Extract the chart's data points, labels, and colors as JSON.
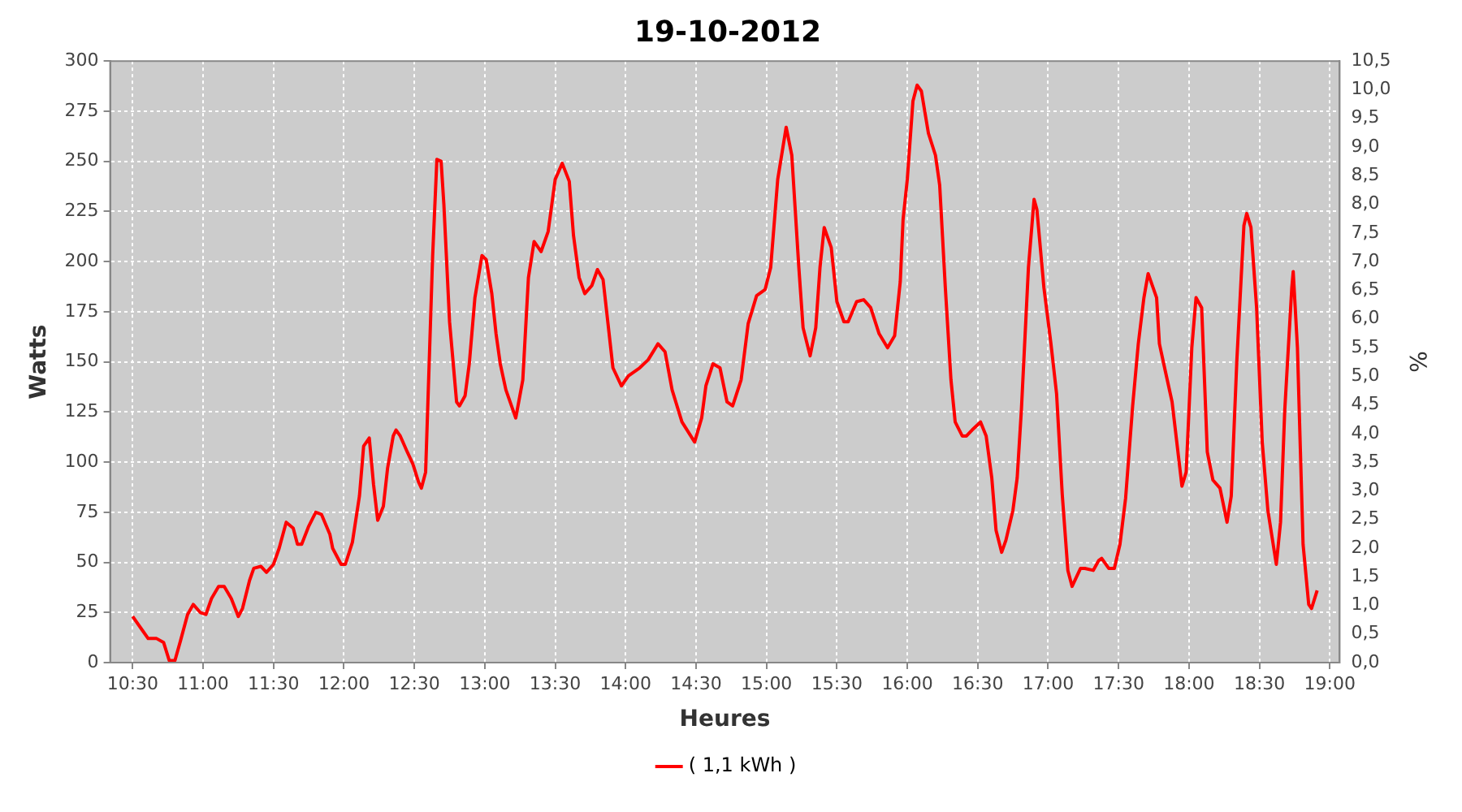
{
  "chart_data": {
    "type": "line",
    "title": "19-10-2012",
    "xlabel": "Heures",
    "ylabel": "Watts",
    "y2label": "%",
    "x": [
      10.5,
      10.57,
      10.61,
      10.67,
      10.72,
      10.76,
      10.8,
      10.84,
      10.89,
      10.93,
      10.98,
      11.02,
      11.06,
      11.11,
      11.15,
      11.2,
      11.25,
      11.28,
      11.33,
      11.36,
      11.41,
      11.45,
      11.5,
      11.54,
      11.59,
      11.64,
      11.67,
      11.7,
      11.75,
      11.8,
      11.84,
      11.9,
      11.92,
      11.98,
      12.01,
      12.06,
      12.11,
      12.14,
      12.18,
      12.21,
      12.24,
      12.28,
      12.31,
      12.35,
      12.37,
      12.4,
      12.45,
      12.49,
      12.53,
      12.55,
      12.58,
      12.6,
      12.63,
      12.66,
      12.69,
      12.71,
      12.75,
      12.8,
      12.82,
      12.86,
      12.89,
      12.93,
      12.98,
      13.01,
      13.05,
      13.08,
      13.11,
      13.15,
      13.2,
      13.22,
      13.27,
      13.31,
      13.35,
      13.4,
      13.45,
      13.5,
      13.55,
      13.6,
      13.63,
      13.67,
      13.71,
      13.76,
      13.8,
      13.84,
      13.91,
      13.97,
      14.02,
      14.1,
      14.16,
      14.23,
      14.28,
      14.33,
      14.4,
      14.49,
      14.54,
      14.57,
      14.62,
      14.67,
      14.72,
      14.76,
      14.82,
      14.87,
      14.93,
      14.99,
      15.03,
      15.08,
      15.14,
      15.18,
      15.23,
      15.26,
      15.31,
      15.35,
      15.38,
      15.41,
      15.46,
      15.5,
      15.55,
      15.58,
      15.64,
      15.69,
      15.74,
      15.8,
      15.86,
      15.91,
      15.95,
      15.97,
      16.0,
      16.04,
      16.07,
      16.1,
      16.15,
      16.2,
      16.23,
      16.27,
      16.31,
      16.34,
      16.39,
      16.42,
      16.46,
      16.52,
      16.56,
      16.6,
      16.63,
      16.67,
      16.7,
      16.75,
      16.78,
      16.81,
      16.86,
      16.9,
      16.92,
      16.97,
      17.02,
      17.06,
      17.1,
      17.14,
      17.17,
      17.23,
      17.26,
      17.32,
      17.36,
      17.38,
      17.43,
      17.47,
      17.51,
      17.55,
      17.6,
      17.64,
      17.68,
      17.71,
      17.77,
      17.79,
      17.83,
      17.88,
      17.93,
      17.95,
      17.98,
      18.02,
      18.05,
      18.09,
      18.11,
      18.13,
      18.17,
      18.22,
      18.27,
      18.3,
      18.34,
      18.39,
      18.41,
      18.44,
      18.48,
      18.52,
      18.56,
      18.62,
      18.65,
      18.68,
      18.73,
      18.74,
      18.77,
      18.81,
      18.85,
      18.87,
      18.91
    ],
    "series": [
      {
        "name": "( 1,1 kWh )",
        "color": "#ff0000",
        "values": [
          23,
          16,
          12,
          12,
          10,
          1,
          1,
          11,
          24,
          29,
          25,
          24,
          32,
          38,
          38,
          32,
          23,
          27,
          41,
          47,
          48,
          45,
          49,
          57,
          70,
          67,
          59,
          59,
          68,
          75,
          74,
          64,
          57,
          49,
          49,
          60,
          83,
          108,
          112,
          89,
          71,
          78,
          97,
          113,
          116,
          113,
          105,
          99,
          90,
          87,
          95,
          138,
          203,
          251,
          250,
          228,
          170,
          130,
          128,
          133,
          149,
          182,
          203,
          201,
          184,
          164,
          149,
          136,
          126,
          122,
          141,
          192,
          210,
          205,
          215,
          241,
          249,
          240,
          213,
          192,
          184,
          188,
          196,
          191,
          147,
          138,
          143,
          147,
          151,
          159,
          155,
          136,
          120,
          110,
          122,
          138,
          149,
          147,
          130,
          128,
          141,
          169,
          183,
          186,
          197,
          241,
          267,
          253,
          197,
          167,
          153,
          167,
          197,
          217,
          207,
          180,
          170,
          170,
          180,
          181,
          177,
          164,
          157,
          163,
          190,
          221,
          241,
          280,
          288,
          285,
          264,
          253,
          238,
          187,
          141,
          120,
          113,
          113,
          116,
          120,
          113,
          92,
          66,
          55,
          61,
          76,
          92,
          126,
          197,
          231,
          226,
          187,
          159,
          134,
          84,
          46,
          38,
          47,
          47,
          46,
          51,
          52,
          47,
          47,
          59,
          82,
          128,
          159,
          182,
          194,
          182,
          159,
          146,
          130,
          100,
          88,
          95,
          157,
          182,
          177,
          141,
          105,
          91,
          87,
          70,
          83,
          151,
          218,
          224,
          217,
          177,
          110,
          76,
          49,
          70,
          126,
          187,
          195,
          157,
          59,
          29,
          27,
          36
        ]
      }
    ],
    "xlim": [
      10.34,
      19.07
    ],
    "xticks": [
      {
        "value": 10.5,
        "label": "10:30"
      },
      {
        "value": 11,
        "label": "11:00"
      },
      {
        "value": 11.5,
        "label": "11:30"
      },
      {
        "value": 12,
        "label": "12:00"
      },
      {
        "value": 12.5,
        "label": "12:30"
      },
      {
        "value": 13,
        "label": "13:00"
      },
      {
        "value": 13.5,
        "label": "13:30"
      },
      {
        "value": 14,
        "label": "14:00"
      },
      {
        "value": 14.5,
        "label": "14:30"
      },
      {
        "value": 15,
        "label": "15:00"
      },
      {
        "value": 15.5,
        "label": "15:30"
      },
      {
        "value": 16,
        "label": "16:00"
      },
      {
        "value": 16.5,
        "label": "16:30"
      },
      {
        "value": 17,
        "label": "17:00"
      },
      {
        "value": 17.5,
        "label": "17:30"
      },
      {
        "value": 18,
        "label": "18:00"
      },
      {
        "value": 18.5,
        "label": "18:30"
      },
      {
        "value": 19,
        "label": "19:00"
      }
    ],
    "ylim": [
      0,
      300
    ],
    "yticks": [
      0,
      25,
      50,
      75,
      100,
      125,
      150,
      175,
      200,
      225,
      250,
      275,
      300
    ],
    "y2lim": [
      0,
      10.5
    ],
    "y2ticks": [
      {
        "value": 0,
        "label": "0,0"
      },
      {
        "value": 0.5,
        "label": "0,5"
      },
      {
        "value": 1,
        "label": "1,0"
      },
      {
        "value": 1.5,
        "label": "1,5"
      },
      {
        "value": 2,
        "label": "2,0"
      },
      {
        "value": 2.5,
        "label": "2,5"
      },
      {
        "value": 3,
        "label": "3,0"
      },
      {
        "value": 3.5,
        "label": "3,5"
      },
      {
        "value": 4,
        "label": "4,0"
      },
      {
        "value": 4.5,
        "label": "4,5"
      },
      {
        "value": 5,
        "label": "5,0"
      },
      {
        "value": 5.5,
        "label": "5,5"
      },
      {
        "value": 6,
        "label": "6,0"
      },
      {
        "value": 6.5,
        "label": "6,5"
      },
      {
        "value": 7,
        "label": "7,0"
      },
      {
        "value": 7.5,
        "label": "7,5"
      },
      {
        "value": 8,
        "label": "8,0"
      },
      {
        "value": 8.5,
        "label": "8,5"
      },
      {
        "value": 9,
        "label": "9,0"
      },
      {
        "value": 9.5,
        "label": "9,5"
      },
      {
        "value": 10,
        "label": "10,0"
      },
      {
        "value": 10.5,
        "label": "10,5"
      }
    ],
    "grid": true,
    "legend": "bottom",
    "marker": "none",
    "line_style": "solid"
  }
}
